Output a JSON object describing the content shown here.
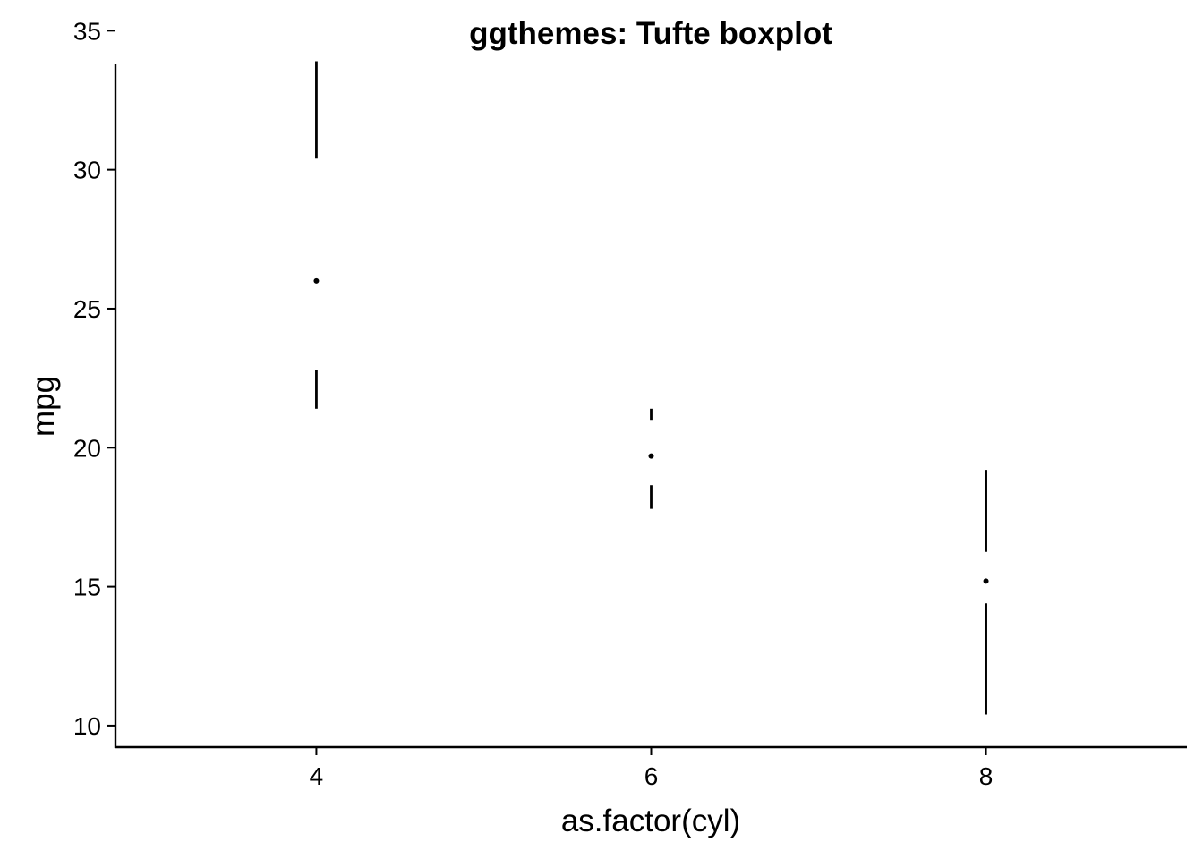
{
  "chart_data": {
    "type": "boxplot",
    "title": "ggthemes: Tufte boxplot",
    "xlabel": "as.factor(cyl)",
    "ylabel": "mpg",
    "categories": [
      "4",
      "6",
      "8"
    ],
    "xlim": [
      0.4,
      3.6
    ],
    "ylim": [
      9.225,
      35.075
    ],
    "y_ticks": [
      10,
      15,
      20,
      25,
      30,
      35
    ],
    "y_tick_labels": [
      "10",
      "15",
      "20",
      "25",
      "30",
      "35"
    ],
    "grid": false,
    "legend": "none",
    "boxes": [
      {
        "category": "4",
        "lower_whisker": 21.4,
        "q1": 22.8,
        "median": 26.0,
        "q3": 30.4,
        "upper_whisker": 33.9
      },
      {
        "category": "6",
        "lower_whisker": 17.8,
        "q1": 18.65,
        "median": 19.7,
        "q3": 21.0,
        "upper_whisker": 21.4
      },
      {
        "category": "8",
        "lower_whisker": 10.4,
        "q1": 14.4,
        "median": 15.2,
        "q3": 16.25,
        "upper_whisker": 19.2
      }
    ]
  }
}
